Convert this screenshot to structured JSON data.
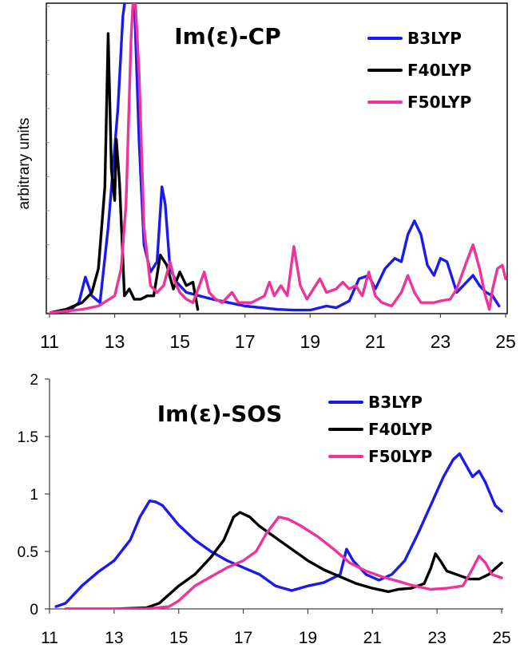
{
  "chart_data": [
    {
      "type": "line",
      "title": "Im(ε)-CP",
      "ylabel": "arbitrary units",
      "xlim": [
        11,
        25
      ],
      "ylim": [
        0,
        9
      ],
      "y_tick_labels_shown": false,
      "x_ticks": [
        11,
        13,
        15,
        17,
        19,
        21,
        23,
        25
      ],
      "legend_position": "top-right",
      "series": [
        {
          "name": "B3LYP",
          "color": "#1a1aee",
          "points": [
            [
              11,
              0
            ],
            [
              11.6,
              0.05
            ],
            [
              11.9,
              0.3
            ],
            [
              12.1,
              1.05
            ],
            [
              12.3,
              0.5
            ],
            [
              12.55,
              0.3
            ],
            [
              12.8,
              2.5
            ],
            [
              13.1,
              6
            ],
            [
              13.25,
              8.7
            ],
            [
              13.4,
              9.8
            ],
            [
              13.6,
              9.3
            ],
            [
              13.75,
              5
            ],
            [
              13.9,
              2
            ],
            [
              14.1,
              1.2
            ],
            [
              14.3,
              1.5
            ],
            [
              14.45,
              3.7
            ],
            [
              14.55,
              3.2
            ],
            [
              14.7,
              1.3
            ],
            [
              14.9,
              0.9
            ],
            [
              15.2,
              0.6
            ],
            [
              15.6,
              0.5
            ],
            [
              16,
              0.4
            ],
            [
              16.5,
              0.3
            ],
            [
              17,
              0.2
            ],
            [
              17.5,
              0.15
            ],
            [
              18,
              0.1
            ],
            [
              18.5,
              0.08
            ],
            [
              19,
              0.08
            ],
            [
              19.5,
              0.2
            ],
            [
              19.8,
              0.15
            ],
            [
              20.2,
              0.35
            ],
            [
              20.5,
              1.0
            ],
            [
              20.8,
              1.1
            ],
            [
              21,
              0.7
            ],
            [
              21.3,
              1.3
            ],
            [
              21.6,
              1.6
            ],
            [
              21.8,
              1.5
            ],
            [
              22,
              2.3
            ],
            [
              22.2,
              2.7
            ],
            [
              22.4,
              2.3
            ],
            [
              22.6,
              1.4
            ],
            [
              22.8,
              1.1
            ],
            [
              23,
              1.6
            ],
            [
              23.2,
              1.5
            ],
            [
              23.5,
              0.6
            ],
            [
              23.8,
              0.9
            ],
            [
              24,
              1.1
            ],
            [
              24.2,
              0.8
            ],
            [
              24.4,
              0.6
            ],
            [
              24.6,
              0.5
            ],
            [
              24.8,
              0.2
            ]
          ]
        },
        {
          "name": "F40LYP",
          "color": "#000000",
          "points": [
            [
              11,
              0
            ],
            [
              11.5,
              0.1
            ],
            [
              12,
              0.3
            ],
            [
              12.3,
              0.6
            ],
            [
              12.5,
              1.3
            ],
            [
              12.7,
              3.7
            ],
            [
              12.8,
              8.2
            ],
            [
              12.9,
              4.2
            ],
            [
              13,
              3.3
            ],
            [
              13.05,
              5.1
            ],
            [
              13.15,
              3.8
            ],
            [
              13.3,
              0.5
            ],
            [
              13.45,
              0.7
            ],
            [
              13.6,
              0.4
            ],
            [
              13.8,
              0.4
            ],
            [
              14,
              0.5
            ],
            [
              14.2,
              0.5
            ],
            [
              14.4,
              1.7
            ],
            [
              14.6,
              1.4
            ],
            [
              14.8,
              0.7
            ],
            [
              15,
              1.2
            ],
            [
              15.2,
              0.8
            ],
            [
              15.4,
              0.9
            ],
            [
              15.55,
              0.1
            ]
          ]
        },
        {
          "name": "F50LYP",
          "color": "#ee3399",
          "points": [
            [
              11,
              0
            ],
            [
              11.5,
              0.05
            ],
            [
              12,
              0.1
            ],
            [
              12.5,
              0.2
            ],
            [
              13,
              0.5
            ],
            [
              13.2,
              1.3
            ],
            [
              13.35,
              3.2
            ],
            [
              13.5,
              8
            ],
            [
              13.6,
              9.8
            ],
            [
              13.75,
              7
            ],
            [
              13.9,
              2.5
            ],
            [
              14.1,
              0.8
            ],
            [
              14.3,
              0.6
            ],
            [
              14.5,
              0.8
            ],
            [
              14.7,
              1.5
            ],
            [
              14.85,
              0.9
            ],
            [
              15,
              0.6
            ],
            [
              15.2,
              0.4
            ],
            [
              15.4,
              0.3
            ],
            [
              15.6,
              0.8
            ],
            [
              15.75,
              1.2
            ],
            [
              15.9,
              0.6
            ],
            [
              16.1,
              0.4
            ],
            [
              16.3,
              0.3
            ],
            [
              16.6,
              0.6
            ],
            [
              16.8,
              0.3
            ],
            [
              17.2,
              0.3
            ],
            [
              17.6,
              0.5
            ],
            [
              17.75,
              0.9
            ],
            [
              17.9,
              0.5
            ],
            [
              18.1,
              0.8
            ],
            [
              18.3,
              0.5
            ],
            [
              18.5,
              1.95
            ],
            [
              18.7,
              0.8
            ],
            [
              18.9,
              0.4
            ],
            [
              19.1,
              0.7
            ],
            [
              19.3,
              1.0
            ],
            [
              19.5,
              0.6
            ],
            [
              19.8,
              0.7
            ],
            [
              20,
              0.9
            ],
            [
              20.2,
              0.7
            ],
            [
              20.4,
              0.8
            ],
            [
              20.6,
              0.5
            ],
            [
              20.8,
              1.2
            ],
            [
              21,
              0.5
            ],
            [
              21.2,
              0.3
            ],
            [
              21.5,
              0.2
            ],
            [
              21.8,
              0.6
            ],
            [
              22,
              1.1
            ],
            [
              22.2,
              0.6
            ],
            [
              22.4,
              0.3
            ],
            [
              22.8,
              0.3
            ],
            [
              23,
              0.35
            ],
            [
              23.3,
              0.4
            ],
            [
              23.5,
              0.7
            ],
            [
              23.8,
              1.5
            ],
            [
              24,
              2.0
            ],
            [
              24.2,
              1.3
            ],
            [
              24.35,
              0.6
            ],
            [
              24.5,
              0.1
            ],
            [
              24.6,
              0.7
            ],
            [
              24.75,
              1.3
            ],
            [
              24.9,
              1.4
            ],
            [
              25,
              1.0
            ]
          ]
        }
      ]
    },
    {
      "type": "line",
      "title": "Im(ε)-SOS",
      "ylabel": "",
      "xlim": [
        11,
        25
      ],
      "ylim": [
        0,
        2
      ],
      "y_ticks": [
        0,
        0.5,
        1,
        1.5,
        2
      ],
      "x_ticks": [
        11,
        13,
        15,
        17,
        19,
        21,
        23,
        25
      ],
      "legend_position": "top-right",
      "series": [
        {
          "name": "B3LYP",
          "color": "#1a1aee",
          "points": [
            [
              11.2,
              0.02
            ],
            [
              11.5,
              0.05
            ],
            [
              12,
              0.2
            ],
            [
              12.5,
              0.32
            ],
            [
              13,
              0.42
            ],
            [
              13.5,
              0.6
            ],
            [
              13.8,
              0.8
            ],
            [
              14.1,
              0.94
            ],
            [
              14.3,
              0.93
            ],
            [
              14.5,
              0.9
            ],
            [
              15,
              0.73
            ],
            [
              15.5,
              0.6
            ],
            [
              16,
              0.5
            ],
            [
              16.5,
              0.42
            ],
            [
              17,
              0.36
            ],
            [
              17.5,
              0.3
            ],
            [
              18,
              0.2
            ],
            [
              18.5,
              0.16
            ],
            [
              19,
              0.2
            ],
            [
              19.5,
              0.23
            ],
            [
              20,
              0.3
            ],
            [
              20.2,
              0.52
            ],
            [
              20.4,
              0.42
            ],
            [
              20.8,
              0.3
            ],
            [
              21.2,
              0.25
            ],
            [
              21.6,
              0.3
            ],
            [
              22,
              0.42
            ],
            [
              22.4,
              0.65
            ],
            [
              22.8,
              0.9
            ],
            [
              23.2,
              1.15
            ],
            [
              23.5,
              1.3
            ],
            [
              23.7,
              1.35
            ],
            [
              23.9,
              1.25
            ],
            [
              24.1,
              1.15
            ],
            [
              24.3,
              1.2
            ],
            [
              24.5,
              1.1
            ],
            [
              24.8,
              0.9
            ],
            [
              25,
              0.85
            ]
          ]
        },
        {
          "name": "F40LYP",
          "color": "#000000",
          "points": [
            [
              11.5,
              0
            ],
            [
              12,
              0
            ],
            [
              13,
              0
            ],
            [
              14,
              0.01
            ],
            [
              14.4,
              0.05
            ],
            [
              15,
              0.2
            ],
            [
              15.5,
              0.3
            ],
            [
              16,
              0.45
            ],
            [
              16.4,
              0.6
            ],
            [
              16.7,
              0.8
            ],
            [
              16.9,
              0.84
            ],
            [
              17.2,
              0.8
            ],
            [
              17.5,
              0.72
            ],
            [
              18,
              0.62
            ],
            [
              18.5,
              0.52
            ],
            [
              19,
              0.42
            ],
            [
              19.5,
              0.34
            ],
            [
              20,
              0.28
            ],
            [
              20.5,
              0.22
            ],
            [
              21,
              0.18
            ],
            [
              21.5,
              0.15
            ],
            [
              21.8,
              0.17
            ],
            [
              22.2,
              0.18
            ],
            [
              22.6,
              0.22
            ],
            [
              22.8,
              0.35
            ],
            [
              22.95,
              0.48
            ],
            [
              23.1,
              0.42
            ],
            [
              23.3,
              0.33
            ],
            [
              23.6,
              0.3
            ],
            [
              24,
              0.26
            ],
            [
              24.3,
              0.26
            ],
            [
              24.6,
              0.3
            ],
            [
              25,
              0.4
            ]
          ]
        },
        {
          "name": "F50LYP",
          "color": "#ee3399",
          "points": [
            [
              11.5,
              0
            ],
            [
              12,
              0
            ],
            [
              13,
              0
            ],
            [
              14,
              0
            ],
            [
              14.7,
              0.02
            ],
            [
              15,
              0.07
            ],
            [
              15.5,
              0.2
            ],
            [
              16,
              0.28
            ],
            [
              16.5,
              0.36
            ],
            [
              17,
              0.42
            ],
            [
              17.4,
              0.5
            ],
            [
              17.7,
              0.65
            ],
            [
              18.1,
              0.8
            ],
            [
              18.4,
              0.78
            ],
            [
              18.8,
              0.72
            ],
            [
              19.3,
              0.63
            ],
            [
              19.8,
              0.52
            ],
            [
              20.3,
              0.4
            ],
            [
              20.8,
              0.33
            ],
            [
              21.3,
              0.28
            ],
            [
              21.8,
              0.24
            ],
            [
              22.3,
              0.2
            ],
            [
              22.8,
              0.17
            ],
            [
              23.3,
              0.18
            ],
            [
              23.8,
              0.2
            ],
            [
              24.1,
              0.35
            ],
            [
              24.3,
              0.46
            ],
            [
              24.5,
              0.4
            ],
            [
              24.7,
              0.3
            ],
            [
              25,
              0.27
            ]
          ]
        }
      ]
    }
  ]
}
